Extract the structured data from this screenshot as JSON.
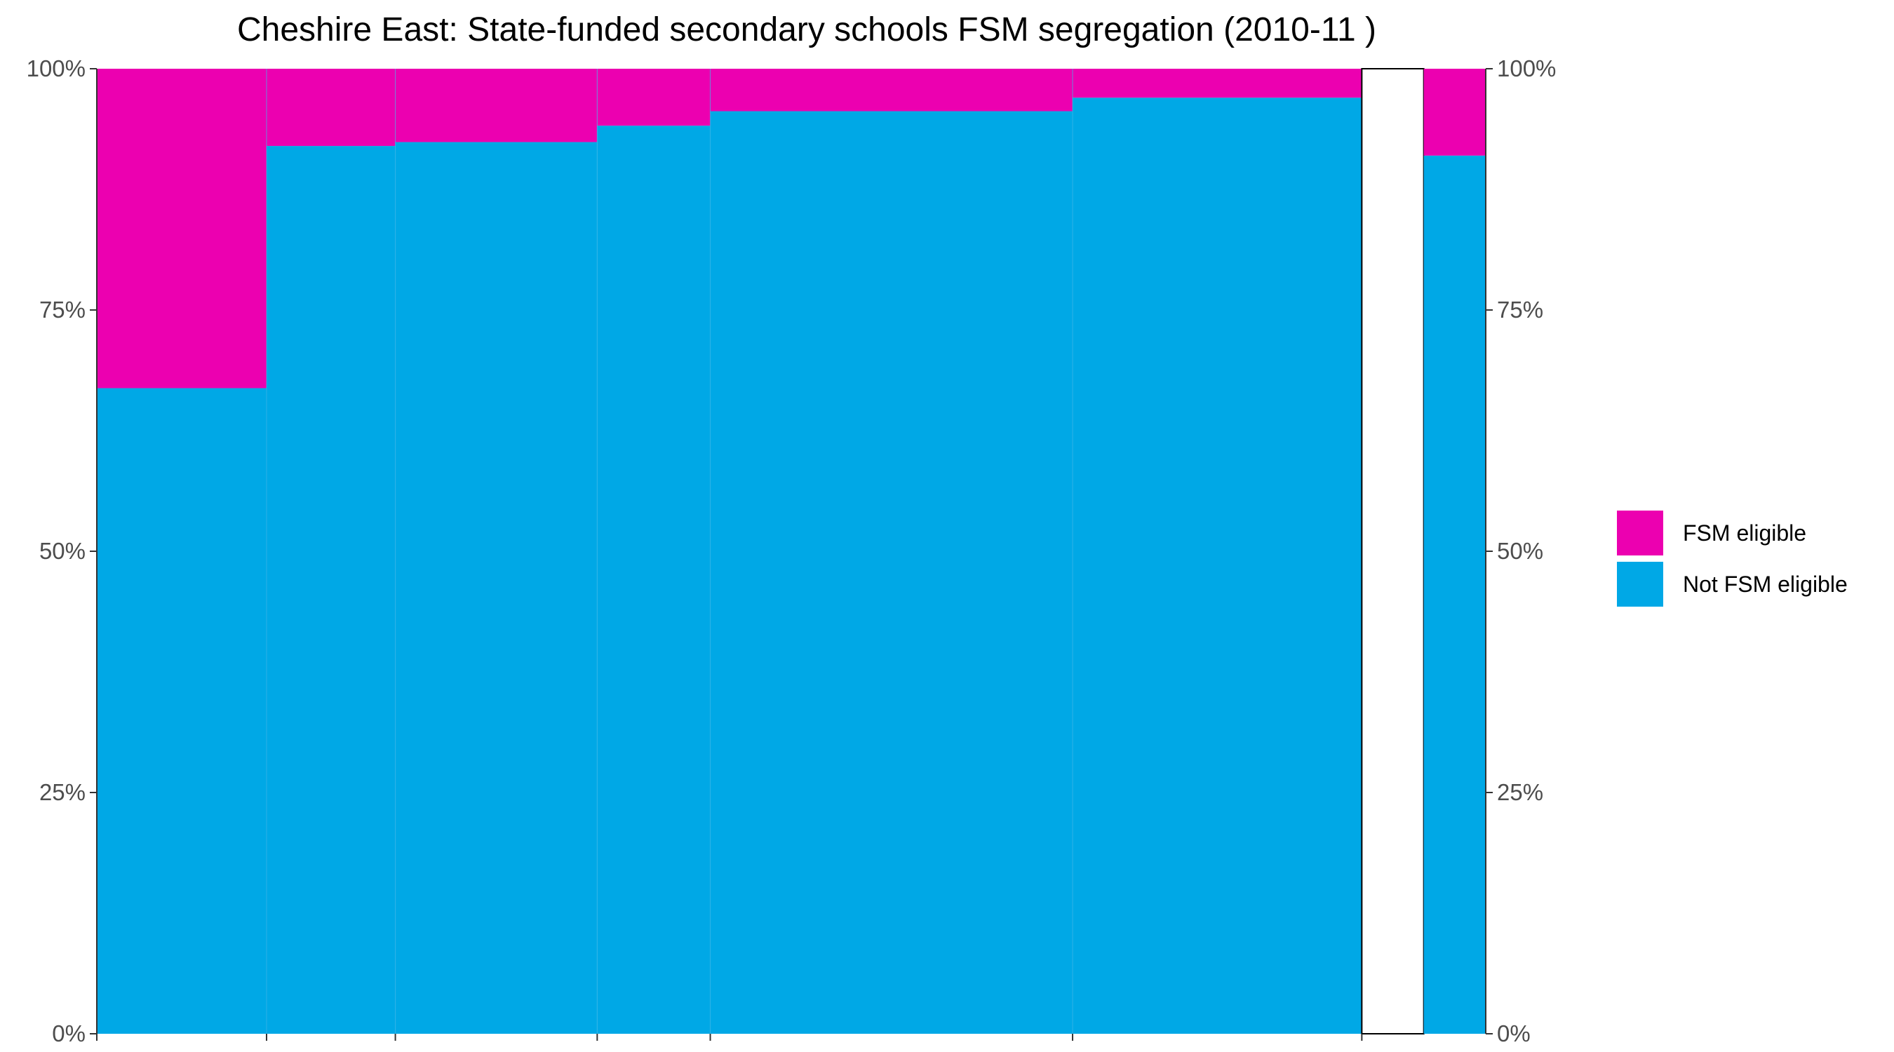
{
  "chart_data": {
    "type": "bar",
    "subtype": "stacked-mosaic-100-percent",
    "title": "Cheshire East: State-funded secondary schools FSM segregation (2010-11 )",
    "xlabel": "",
    "ylabel": "",
    "ylim": [
      0,
      100
    ],
    "y_ticks": [
      "0%",
      "25%",
      "50%",
      "75%",
      "100%"
    ],
    "y_tick_values": [
      0,
      25,
      50,
      75,
      100
    ],
    "secondary_y_axis": true,
    "grid": false,
    "legend_position": "right",
    "series": [
      {
        "name": "FSM eligible",
        "color": "#EC00B0"
      },
      {
        "name": "Not FSM eligible",
        "color": "#00A8E6"
      }
    ],
    "bars": [
      {
        "share_of_pupils": 12.22,
        "fsm_eligible_pct": 33.1,
        "not_fsm_eligible_pct": 66.9
      },
      {
        "share_of_pupils": 9.27,
        "fsm_eligible_pct": 8.0,
        "not_fsm_eligible_pct": 92.0
      },
      {
        "share_of_pupils": 14.53,
        "fsm_eligible_pct": 7.6,
        "not_fsm_eligible_pct": 92.4
      },
      {
        "share_of_pupils": 8.14,
        "fsm_eligible_pct": 5.9,
        "not_fsm_eligible_pct": 94.1
      },
      {
        "share_of_pupils": 26.08,
        "fsm_eligible_pct": 4.4,
        "not_fsm_eligible_pct": 95.6
      },
      {
        "share_of_pupils": 20.82,
        "fsm_eligible_pct": 3.0,
        "not_fsm_eligible_pct": 97.0
      }
    ],
    "gap_share": 4.46,
    "overall": {
      "share_of_pupils": 4.46,
      "fsm_eligible_pct": 9.0,
      "not_fsm_eligible_pct": 91.0
    }
  }
}
